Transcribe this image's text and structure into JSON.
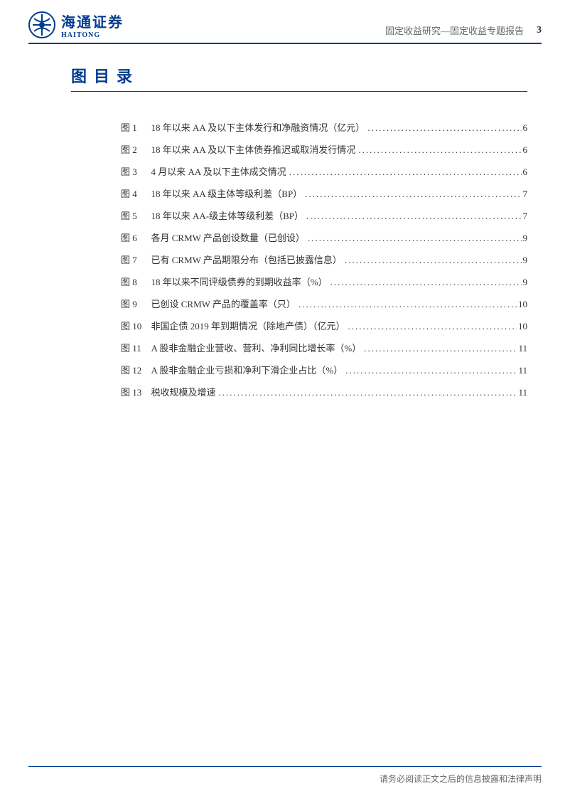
{
  "header": {
    "logo_cn": "海通证券",
    "logo_en": "HAITONG",
    "category": "固定收益研究—固定收益专题报告",
    "page_number": "3"
  },
  "section_title": "图目录",
  "toc": [
    {
      "label": "图 1",
      "title": "18 年以来 AA 及以下主体发行和净融资情况（亿元）",
      "page": "6"
    },
    {
      "label": "图 2",
      "title": "18 年以来 AA 及以下主体债券推迟或取消发行情况",
      "page": "6"
    },
    {
      "label": "图 3",
      "title": "4 月以来 AA 及以下主体成交情况",
      "page": "6"
    },
    {
      "label": "图 4",
      "title": "18 年以来 AA 级主体等级利差（BP）",
      "page": "7"
    },
    {
      "label": "图 5",
      "title": "18 年以来 AA-级主体等级利差（BP）",
      "page": "7"
    },
    {
      "label": "图 6",
      "title": "各月 CRMW 产品创设数量（已创设）",
      "page": "9"
    },
    {
      "label": "图 7",
      "title": "已有 CRMW 产品期限分布（包括已披露信息）",
      "page": "9"
    },
    {
      "label": "图 8",
      "title": "18 年以来不同评级债券的到期收益率（%）",
      "page": "9"
    },
    {
      "label": "图 9",
      "title": "已创设 CRMW 产品的覆盖率（只）",
      "page": "10"
    },
    {
      "label": "图 10",
      "title": "非国企债 2019 年到期情况（除地产债）（亿元）",
      "page": "10"
    },
    {
      "label": "图 11",
      "title": "A 股非金融企业营收、营利、净利同比增长率（%）",
      "page": "11"
    },
    {
      "label": "图 12",
      "title": "A 股非金融企业亏损和净利下滑企业占比（%）",
      "page": "11"
    },
    {
      "label": "图 13",
      "title": "税收规模及增速",
      "page": "11"
    }
  ],
  "footer": "请务必阅读正文之后的信息披露和法律声明",
  "colors": {
    "brand": "#003c8f",
    "text": "#333333",
    "muted": "#666666"
  }
}
